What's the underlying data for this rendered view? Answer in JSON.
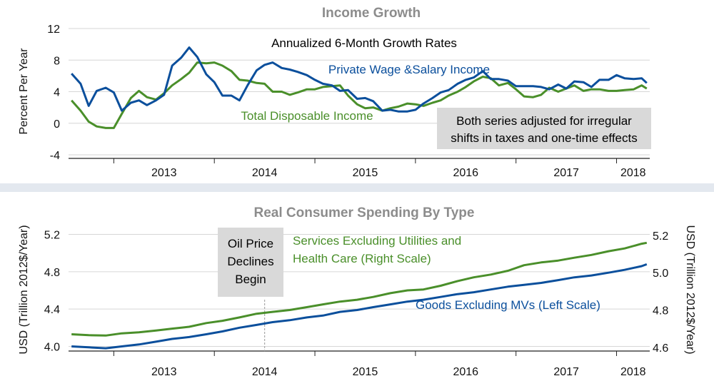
{
  "chart_data": [
    {
      "type": "line",
      "title": "Income Growth",
      "subtitle": "Annualized 6-Month Growth Rates",
      "ylabel": "Percent Per Year",
      "ylim": [
        -4,
        12
      ],
      "yticks": [
        "12",
        "8",
        "4",
        "0",
        "-4"
      ],
      "xlim": [
        2012.55,
        2018.33
      ],
      "year_labels": [
        "2013",
        "2014",
        "2015",
        "2016",
        "2017",
        "2018"
      ],
      "note": [
        "Both series adjusted for irregular",
        "shifts in taxes and one-time effects"
      ],
      "series": [
        {
          "name": "Private Wage &Salary Income",
          "color": "#0b4f9c",
          "x": [
            2012.58,
            2012.67,
            2012.75,
            2012.83,
            2012.92,
            2013.0,
            2013.08,
            2013.17,
            2013.25,
            2013.33,
            2013.42,
            2013.5,
            2013.58,
            2013.67,
            2013.75,
            2013.83,
            2013.92,
            2014.0,
            2014.08,
            2014.17,
            2014.25,
            2014.33,
            2014.42,
            2014.5,
            2014.58,
            2014.67,
            2014.75,
            2014.83,
            2014.92,
            2015.0,
            2015.08,
            2015.17,
            2015.25,
            2015.33,
            2015.42,
            2015.5,
            2015.58,
            2015.67,
            2015.75,
            2015.83,
            2015.92,
            2016.0,
            2016.08,
            2016.17,
            2016.25,
            2016.33,
            2016.42,
            2016.5,
            2016.58,
            2016.67,
            2016.75,
            2016.83,
            2016.92,
            2017.0,
            2017.08,
            2017.17,
            2017.25,
            2017.33,
            2017.42,
            2017.5,
            2017.58,
            2017.67,
            2017.75,
            2017.83,
            2017.92,
            2018.0,
            2018.08,
            2018.17,
            2018.25,
            2018.3
          ],
          "y": [
            6.3,
            5.0,
            2.2,
            4.1,
            4.5,
            3.9,
            1.6,
            2.6,
            2.9,
            2.3,
            2.9,
            3.6,
            7.3,
            8.3,
            9.6,
            8.4,
            6.2,
            5.2,
            3.5,
            3.5,
            2.9,
            4.8,
            6.7,
            7.4,
            7.7,
            7.0,
            6.8,
            6.5,
            6.1,
            5.5,
            5.0,
            4.8,
            4.1,
            4.2,
            3.1,
            3.2,
            2.8,
            1.6,
            1.7,
            1.5,
            1.5,
            1.7,
            2.5,
            3.2,
            3.9,
            4.2,
            5.0,
            5.5,
            5.8,
            6.6,
            5.6,
            5.6,
            5.4,
            4.7,
            4.7,
            4.7,
            4.6,
            4.3,
            4.9,
            4.4,
            5.3,
            5.2,
            4.6,
            5.5,
            5.5,
            6.1,
            5.7,
            5.6,
            5.7,
            5.1
          ]
        },
        {
          "name": "Total Disposable Income",
          "color": "#4a8f2a",
          "x": [
            2012.58,
            2012.67,
            2012.75,
            2012.83,
            2012.92,
            2013.0,
            2013.08,
            2013.17,
            2013.25,
            2013.33,
            2013.42,
            2013.5,
            2013.58,
            2013.67,
            2013.75,
            2013.83,
            2013.92,
            2014.0,
            2014.08,
            2014.17,
            2014.25,
            2014.33,
            2014.42,
            2014.5,
            2014.58,
            2014.67,
            2014.75,
            2014.83,
            2014.92,
            2015.0,
            2015.08,
            2015.17,
            2015.25,
            2015.33,
            2015.42,
            2015.5,
            2015.58,
            2015.67,
            2015.75,
            2015.83,
            2015.92,
            2016.0,
            2016.08,
            2016.17,
            2016.25,
            2016.33,
            2016.42,
            2016.5,
            2016.58,
            2016.67,
            2016.75,
            2016.83,
            2016.92,
            2017.0,
            2017.08,
            2017.17,
            2017.25,
            2017.33,
            2017.42,
            2017.5,
            2017.58,
            2017.67,
            2017.75,
            2017.83,
            2017.92,
            2018.0,
            2018.08,
            2018.17,
            2018.25,
            2018.3
          ],
          "y": [
            2.9,
            1.6,
            0.2,
            -0.4,
            -0.6,
            -0.6,
            1.2,
            3.2,
            4.1,
            3.3,
            3.0,
            3.8,
            4.8,
            5.6,
            6.4,
            7.7,
            7.6,
            7.7,
            7.3,
            6.6,
            5.5,
            5.4,
            5.1,
            5.0,
            4.0,
            4.0,
            3.6,
            3.9,
            4.3,
            4.3,
            4.6,
            4.7,
            4.8,
            3.5,
            2.4,
            1.9,
            2.0,
            1.6,
            1.9,
            2.1,
            2.5,
            2.4,
            2.2,
            2.6,
            2.9,
            3.5,
            4.0,
            4.6,
            5.3,
            5.9,
            5.7,
            4.8,
            5.1,
            4.3,
            3.4,
            3.3,
            3.6,
            4.5,
            4.0,
            4.4,
            4.8,
            4.1,
            4.3,
            4.3,
            4.1,
            4.1,
            4.2,
            4.3,
            4.8,
            4.4
          ]
        }
      ]
    },
    {
      "type": "line",
      "title": "Real Consumer Spending By Type",
      "ylabel_left": "USD (Trillion 2012$/Year)",
      "ylabel_right": "USD (Trillion 2012$/Year)",
      "ylim_left": [
        3.95,
        5.25
      ],
      "ylim_right": [
        4.58,
        5.23
      ],
      "yticks_left": [
        "5.2",
        "4.8",
        "4.4",
        "4.0"
      ],
      "yticks_right": [
        "5.2",
        "5.0",
        "4.8",
        "4.6"
      ],
      "xlim": [
        2012.55,
        2018.33
      ],
      "year_labels": [
        "2013",
        "2014",
        "2015",
        "2016",
        "2017",
        "2018"
      ],
      "annotation": {
        "lines": [
          "Oil Price",
          "Declines",
          "Begin"
        ],
        "x": 2014.5
      },
      "series": [
        {
          "name": "Services Excluding Utilities and Health Care (Right Scale)",
          "label_lines": [
            "Services Excluding Utilities and",
            "Health Care (Right Scale)"
          ],
          "axis": "right",
          "color": "#4a8f2a",
          "x": [
            2012.58,
            2012.75,
            2012.92,
            2013.08,
            2013.25,
            2013.42,
            2013.58,
            2013.75,
            2013.92,
            2014.08,
            2014.25,
            2014.42,
            2014.58,
            2014.75,
            2014.92,
            2015.08,
            2015.25,
            2015.42,
            2015.58,
            2015.75,
            2015.92,
            2016.08,
            2016.25,
            2016.42,
            2016.58,
            2016.75,
            2016.92,
            2017.08,
            2017.25,
            2017.42,
            2017.58,
            2017.75,
            2017.92,
            2018.08,
            2018.25,
            2018.3
          ],
          "y": [
            4.67,
            4.665,
            4.663,
            4.675,
            4.68,
            4.69,
            4.7,
            4.71,
            4.73,
            4.742,
            4.76,
            4.78,
            4.79,
            4.8,
            4.815,
            4.83,
            4.845,
            4.855,
            4.87,
            4.89,
            4.905,
            4.91,
            4.93,
            4.955,
            4.975,
            4.99,
            5.01,
            5.04,
            5.055,
            5.065,
            5.08,
            5.095,
            5.115,
            5.13,
            5.155,
            5.16
          ]
        },
        {
          "name": "Goods Excluding MVs (Left Scale)",
          "axis": "left",
          "color": "#0b4f9c",
          "x": [
            2012.58,
            2012.75,
            2012.92,
            2013.08,
            2013.25,
            2013.42,
            2013.58,
            2013.75,
            2013.92,
            2014.08,
            2014.25,
            2014.42,
            2014.58,
            2014.75,
            2014.92,
            2015.08,
            2015.25,
            2015.42,
            2015.58,
            2015.75,
            2015.92,
            2016.08,
            2016.25,
            2016.42,
            2016.58,
            2016.75,
            2016.92,
            2017.08,
            2017.25,
            2017.42,
            2017.58,
            2017.75,
            2017.92,
            2018.08,
            2018.25,
            2018.3
          ],
          "y": [
            4.0,
            3.99,
            3.98,
            4.0,
            4.02,
            4.05,
            4.08,
            4.1,
            4.13,
            4.16,
            4.2,
            4.23,
            4.26,
            4.28,
            4.31,
            4.33,
            4.37,
            4.39,
            4.42,
            4.45,
            4.48,
            4.5,
            4.53,
            4.56,
            4.58,
            4.61,
            4.64,
            4.66,
            4.68,
            4.71,
            4.74,
            4.76,
            4.79,
            4.82,
            4.86,
            4.88
          ]
        }
      ]
    }
  ]
}
